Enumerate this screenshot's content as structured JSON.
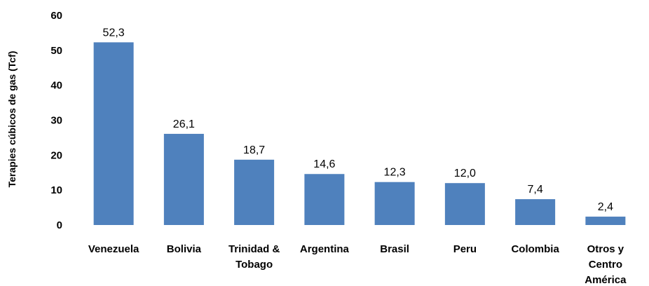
{
  "chart_data": {
    "type": "bar",
    "title": "",
    "xlabel": "",
    "ylabel": "Terapies cúbicos de gas (Tcf)",
    "ylim": [
      0,
      60
    ],
    "yticks": [
      "0",
      "10",
      "20",
      "30",
      "40",
      "50",
      "60"
    ],
    "grid": false,
    "bar_color": "#4f81bd",
    "categories": [
      [
        "Venezuela"
      ],
      [
        "Bolivia"
      ],
      [
        "Trinidad &",
        "Tobago"
      ],
      [
        "Argentina"
      ],
      [
        "Brasil"
      ],
      [
        "Peru"
      ],
      [
        "Colombia"
      ],
      [
        "Otros y",
        "Centro",
        "América"
      ]
    ],
    "values": [
      52.3,
      26.1,
      18.7,
      14.6,
      12.3,
      12.0,
      7.4,
      2.4
    ],
    "value_labels": [
      "52,3",
      "26,1",
      "18,7",
      "14,6",
      "12,3",
      "12,0",
      "7,4",
      "2,4"
    ]
  }
}
